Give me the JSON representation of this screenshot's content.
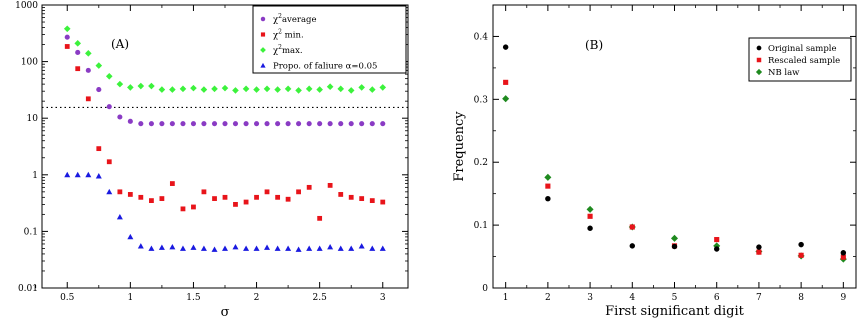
{
  "chart_data": [
    {
      "type": "scatter",
      "panel_label": "(A)",
      "xlabel": "σ",
      "ylabel": "",
      "xlim": [
        0.3,
        3.2
      ],
      "ylim": [
        0.01,
        1000
      ],
      "y_scale": "log",
      "x_ticks": [
        0.5,
        1,
        1.5,
        2,
        2.5,
        3
      ],
      "x_tick_labels": [
        "0.5",
        "1",
        "1.5",
        "2",
        "2.5",
        "3"
      ],
      "y_ticks": [
        0.01,
        0.1,
        1,
        10,
        100,
        1000
      ],
      "y_tick_labels": [
        "0.01",
        "0.1",
        "1",
        "10",
        "100",
        "1000"
      ],
      "reference_line": {
        "y": 15.5,
        "style": "dotted"
      },
      "legend_placement": "top-right",
      "x": [
        0.5,
        0.583,
        0.667,
        0.75,
        0.833,
        0.917,
        1.0,
        1.083,
        1.167,
        1.25,
        1.333,
        1.417,
        1.5,
        1.583,
        1.667,
        1.75,
        1.833,
        1.917,
        2.0,
        2.083,
        2.167,
        2.25,
        2.333,
        2.417,
        2.5,
        2.583,
        2.667,
        2.75,
        2.833,
        2.917,
        3.0
      ],
      "series": [
        {
          "name_prefix": "χ",
          "name_sup": "2",
          "name_suffix": "average",
          "color": "#8a3bc4",
          "marker": "circle",
          "values": [
            270,
            145,
            70,
            32,
            16,
            10.5,
            8.8,
            8.0,
            8.0,
            8.0,
            8.0,
            8.0,
            8.0,
            8.0,
            8.0,
            8.0,
            8.0,
            8.0,
            8.0,
            8.0,
            8.0,
            8.0,
            8.0,
            8.0,
            8.0,
            8.0,
            8.0,
            8.0,
            8.0,
            8.0,
            8.0
          ]
        },
        {
          "name_prefix": "χ",
          "name_sup": "2",
          "name_suffix": " min.",
          "color": "#e8141a",
          "marker": "square",
          "values": [
            185,
            75,
            22,
            2.9,
            1.7,
            0.5,
            0.45,
            0.4,
            0.35,
            0.38,
            0.7,
            0.25,
            0.27,
            0.5,
            0.38,
            0.4,
            0.3,
            0.33,
            0.4,
            0.5,
            0.4,
            0.37,
            0.5,
            0.6,
            0.17,
            0.65,
            0.45,
            0.4,
            0.38,
            0.35,
            0.33
          ]
        },
        {
          "name_prefix": "χ",
          "name_sup": "2",
          "name_suffix": "max.",
          "color": "#3cf23c",
          "marker": "diamond",
          "values": [
            380,
            210,
            140,
            85,
            55,
            40,
            35,
            37,
            37,
            32,
            32,
            33,
            34,
            32,
            33,
            34,
            31,
            33,
            32,
            33,
            32,
            33,
            31,
            33,
            32,
            36,
            33,
            31,
            35,
            32,
            35
          ]
        },
        {
          "name": "Propo. of faliure α=0.05",
          "color": "#1a1ae0",
          "marker": "triangle",
          "values": [
            1.0,
            1.0,
            1.0,
            0.95,
            0.5,
            0.18,
            0.08,
            0.055,
            0.05,
            0.052,
            0.053,
            0.05,
            0.052,
            0.05,
            0.048,
            0.05,
            0.053,
            0.05,
            0.05,
            0.052,
            0.05,
            0.05,
            0.048,
            0.05,
            0.05,
            0.053,
            0.05,
            0.05,
            0.055,
            0.05,
            0.05
          ]
        }
      ]
    },
    {
      "type": "scatter",
      "panel_label": "(B)",
      "xlabel": "First significant digit",
      "ylabel": "Frequency",
      "xlim": [
        0.7,
        9.3
      ],
      "ylim": [
        0,
        0.45
      ],
      "x_ticks": [
        1,
        2,
        3,
        4,
        5,
        6,
        7,
        8,
        9
      ],
      "x_tick_labels": [
        "1",
        "2",
        "3",
        "4",
        "5",
        "6",
        "7",
        "8",
        "9"
      ],
      "y_ticks": [
        0,
        0.1,
        0.2,
        0.3,
        0.4
      ],
      "y_tick_labels": [
        "0",
        "0.1",
        "0.2",
        "0.3",
        "0.4"
      ],
      "legend_placement": "top-right",
      "x": [
        1,
        2,
        3,
        4,
        5,
        6,
        7,
        8,
        9
      ],
      "series": [
        {
          "name": "Original sample",
          "color": "#000000",
          "marker": "circle",
          "values": [
            0.383,
            0.142,
            0.095,
            0.067,
            0.066,
            0.062,
            0.065,
            0.069,
            0.056
          ]
        },
        {
          "name": "Rescaled sample",
          "color": "#e8141a",
          "marker": "square",
          "values": [
            0.327,
            0.162,
            0.114,
            0.097,
            0.067,
            0.077,
            0.057,
            0.052,
            0.049
          ]
        },
        {
          "name": "NB law",
          "color": "#1f8a1f",
          "marker": "diamond",
          "values": [
            0.301,
            0.176,
            0.125,
            0.097,
            0.079,
            0.067,
            0.058,
            0.051,
            0.046
          ]
        }
      ]
    }
  ]
}
